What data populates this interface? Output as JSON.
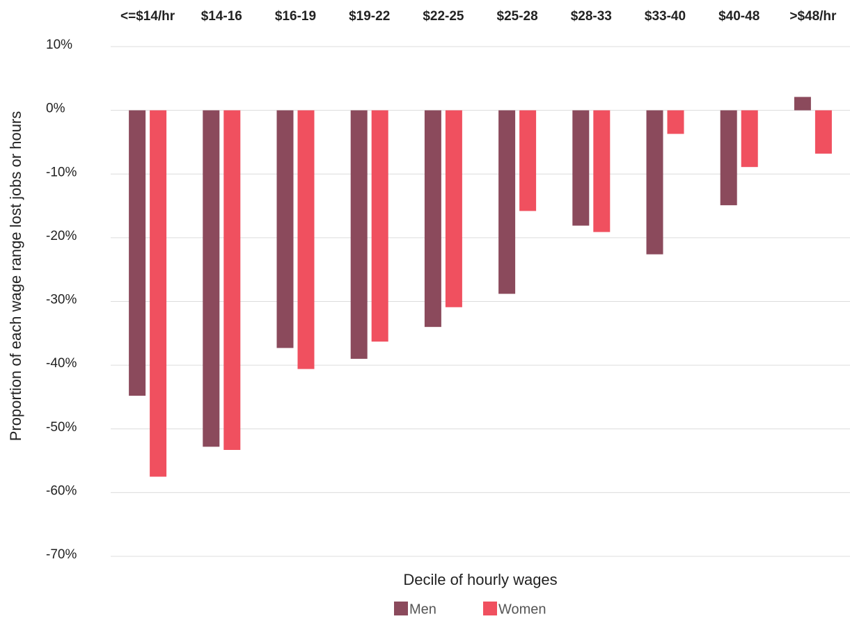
{
  "chart_data": {
    "type": "bar",
    "categories": [
      "<=$14/hr",
      "$14-16",
      "$16-19",
      "$19-22",
      "$22-25",
      "$25-28",
      "$28-33",
      "$33-40",
      "$40-48",
      ">$48/hr"
    ],
    "series": [
      {
        "name": "Men",
        "color": "#8b4a5c",
        "values": [
          -44.8,
          -52.8,
          -37.3,
          -39.0,
          -34.0,
          -28.8,
          -18.1,
          -22.6,
          -14.9,
          2.1
        ]
      },
      {
        "name": "Women",
        "color": "#f0505f",
        "values": [
          -57.5,
          -53.3,
          -40.6,
          -36.3,
          -30.9,
          -15.8,
          -19.1,
          -3.7,
          -8.9,
          -6.8
        ]
      }
    ],
    "ylabel": "Proportion of each wage range lost jobs or hours",
    "xlabel": "Decile of hourly wages",
    "ylim": [
      -70,
      10
    ],
    "yticks": [
      {
        "value": 10,
        "label": "10%"
      },
      {
        "value": 0,
        "label": "0%"
      },
      {
        "value": -10,
        "label": "-10%"
      },
      {
        "value": -20,
        "label": "-20%"
      },
      {
        "value": -30,
        "label": "-30%"
      },
      {
        "value": -40,
        "label": "-40%"
      },
      {
        "value": -50,
        "label": "-50%"
      },
      {
        "value": -60,
        "label": "-60%"
      },
      {
        "value": -70,
        "label": "-70%"
      }
    ],
    "grid": true,
    "legend": "bottom"
  }
}
